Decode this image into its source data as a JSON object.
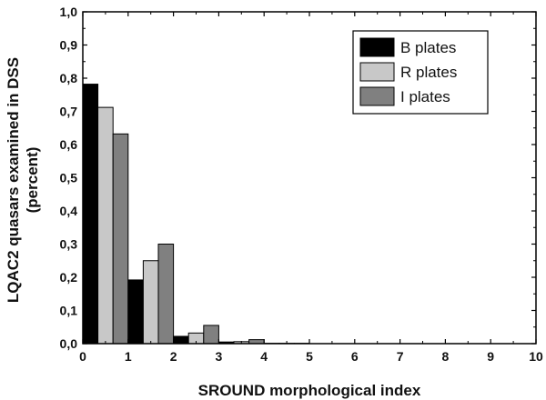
{
  "chart_data": {
    "type": "bar",
    "xlabel": "SROUND morphological index",
    "ylabel_lines": [
      "LQAC2 quasars examined in DSS",
      "(percent)"
    ],
    "xlim": [
      0,
      10
    ],
    "ylim": [
      0,
      1.0
    ],
    "x_ticks": [
      0,
      1,
      2,
      3,
      4,
      5,
      6,
      7,
      8,
      9,
      10
    ],
    "x_tick_labels": [
      "0",
      "1",
      "2",
      "3",
      "4",
      "5",
      "6",
      "7",
      "8",
      "9",
      "10"
    ],
    "y_ticks": [
      0.0,
      0.1,
      0.2,
      0.3,
      0.4,
      0.5,
      0.6,
      0.7,
      0.8,
      0.9,
      1.0
    ],
    "y_tick_labels": [
      "0,0",
      "0,1",
      "0,2",
      "0,3",
      "0,4",
      "0,5",
      "0,6",
      "0,7",
      "0,8",
      "0,9",
      "1,0"
    ],
    "categories": [
      0,
      1,
      2,
      3,
      4,
      5,
      6,
      7,
      8,
      9
    ],
    "series": [
      {
        "name": "B plates",
        "color": "#000000",
        "values": [
          0.782,
          0.192,
          0.022,
          0.005,
          0.001,
          0,
          0,
          0,
          0,
          0
        ]
      },
      {
        "name": "R plates",
        "color": "#c8c8c8",
        "values": [
          0.712,
          0.25,
          0.032,
          0.006,
          0.001,
          0,
          0,
          0,
          0,
          0
        ]
      },
      {
        "name": "I plates",
        "color": "#808080",
        "values": [
          0.632,
          0.3,
          0.055,
          0.012,
          0.001,
          0,
          0,
          0,
          0,
          0
        ]
      }
    ],
    "legend_position": "top-right",
    "grid": false
  }
}
